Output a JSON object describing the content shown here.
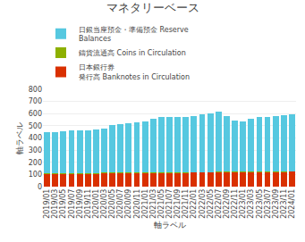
{
  "chart_data": {
    "type": "bar",
    "title": "マネタリーベース",
    "xlabel": "軸ラベル",
    "ylabel": "軸ラベル",
    "categories": [
      "2019/01",
      "2019/03",
      "2019/05",
      "2019/07",
      "2019/09",
      "2019/11",
      "2020/01",
      "2020/03",
      "2020/05",
      "2020/07",
      "2020/09",
      "2020/11",
      "2021/01",
      "2021/03",
      "2021/05",
      "2021/07",
      "2021/09",
      "2021/11",
      "2022/01",
      "2022/03",
      "2022/05",
      "2022/07",
      "2022/09",
      "2022/11",
      "2023/01",
      "2023/03",
      "2023/05",
      "2023/07",
      "2023/09",
      "2023/11",
      "2024/01"
    ],
    "series": [
      {
        "name": "日本銀行券\n発行高 Banknotes in Circulation",
        "color": "#d93000",
        "values": [
          108,
          108,
          108,
          108,
          108,
          108,
          110,
          112,
          113,
          113,
          113,
          115,
          115,
          115,
          116,
          116,
          117,
          117,
          118,
          118,
          118,
          119,
          120,
          120,
          120,
          122,
          122,
          123,
          123,
          124,
          125
        ]
      },
      {
        "name": "鑄貨流通高 Coins in Circulation",
        "color": "#8db000",
        "values": [
          3,
          3,
          3,
          3,
          3,
          3,
          3,
          3,
          3,
          3,
          3,
          3,
          3,
          3,
          3,
          3,
          3,
          3,
          3,
          3,
          3,
          3,
          3,
          3,
          3,
          3,
          3,
          3,
          3,
          3,
          3
        ]
      },
      {
        "name": "日銀当座預金・準備預金 Reserve\nBalances",
        "color": "#56c8e0",
        "values": [
          340,
          340,
          345,
          350,
          350,
          348,
          355,
          365,
          390,
          400,
          405,
          410,
          420,
          440,
          450,
          450,
          455,
          455,
          460,
          470,
          480,
          495,
          460,
          420,
          415,
          435,
          445,
          450,
          455,
          460,
          465
        ]
      }
    ],
    "ylim": [
      0,
      800
    ],
    "yticks": [
      0,
      100,
      200,
      300,
      400,
      500,
      600,
      700,
      800
    ],
    "stacked": true,
    "grid": true,
    "legend": "upper left"
  }
}
